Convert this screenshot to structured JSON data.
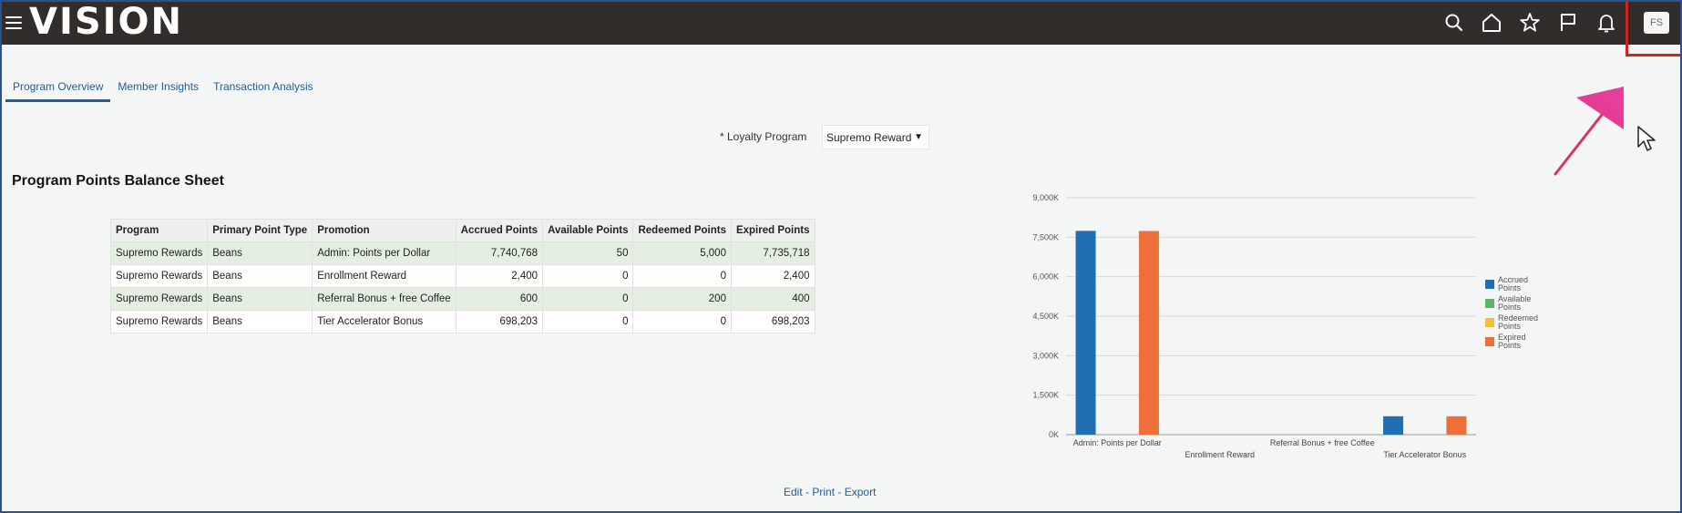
{
  "header": {
    "logo": "VISION",
    "avatar_initials": "FS",
    "icons": [
      "search-icon",
      "home-icon",
      "star-icon",
      "flag-icon",
      "bell-icon"
    ]
  },
  "tabs": [
    {
      "label": "Program Overview",
      "active": true
    },
    {
      "label": "Member Insights",
      "active": false
    },
    {
      "label": "Transaction Analysis",
      "active": false
    }
  ],
  "filter": {
    "label": "* Loyalty Program",
    "value": "Supremo Reward"
  },
  "section_title": "Program Points Balance Sheet",
  "table": {
    "headers": [
      "Program",
      "Primary Point Type",
      "Promotion",
      "Accrued Points",
      "Available Points",
      "Redeemed Points",
      "Expired Points"
    ],
    "rows": [
      [
        "Supremo Rewards",
        "Beans",
        "Admin: Points per Dollar",
        "7,740,768",
        "50",
        "5,000",
        "7,735,718"
      ],
      [
        "Supremo Rewards",
        "Beans",
        "Enrollment Reward",
        "2,400",
        "0",
        "0",
        "2,400"
      ],
      [
        "Supremo Rewards",
        "Beans",
        "Referral Bonus + free Coffee",
        "600",
        "0",
        "200",
        "400"
      ],
      [
        "Supremo Rewards",
        "Beans",
        "Tier Accelerator Bonus",
        "698,203",
        "0",
        "0",
        "698,203"
      ]
    ]
  },
  "footer_links": {
    "edit": "Edit",
    "sep1": " - ",
    "print": "Print",
    "sep2": " - ",
    "export": "Export"
  },
  "chart_data": {
    "type": "bar",
    "categories": [
      "Admin: Points per Dollar",
      "Enrollment Reward",
      "Referral Bonus + free Coffee",
      "Tier Accelerator Bonus"
    ],
    "series": [
      {
        "name": "Accrued Points",
        "color": "#1f6fb2",
        "values": [
          7740768,
          2400,
          600,
          698203
        ]
      },
      {
        "name": "Available Points",
        "color": "#5bb56a",
        "values": [
          50,
          0,
          0,
          0
        ]
      },
      {
        "name": "Redeemed Points",
        "color": "#f2c037",
        "values": [
          5000,
          0,
          200,
          0
        ]
      },
      {
        "name": "Expired Points",
        "color": "#ef6f3a",
        "values": [
          7735718,
          2400,
          400,
          698203
        ]
      }
    ],
    "yticks": [
      "0K",
      "1,500K",
      "3,000K",
      "4,500K",
      "6,000K",
      "7,500K",
      "9,000K"
    ],
    "ylim": [
      0,
      9000000
    ],
    "grid": true,
    "legend": "right"
  }
}
